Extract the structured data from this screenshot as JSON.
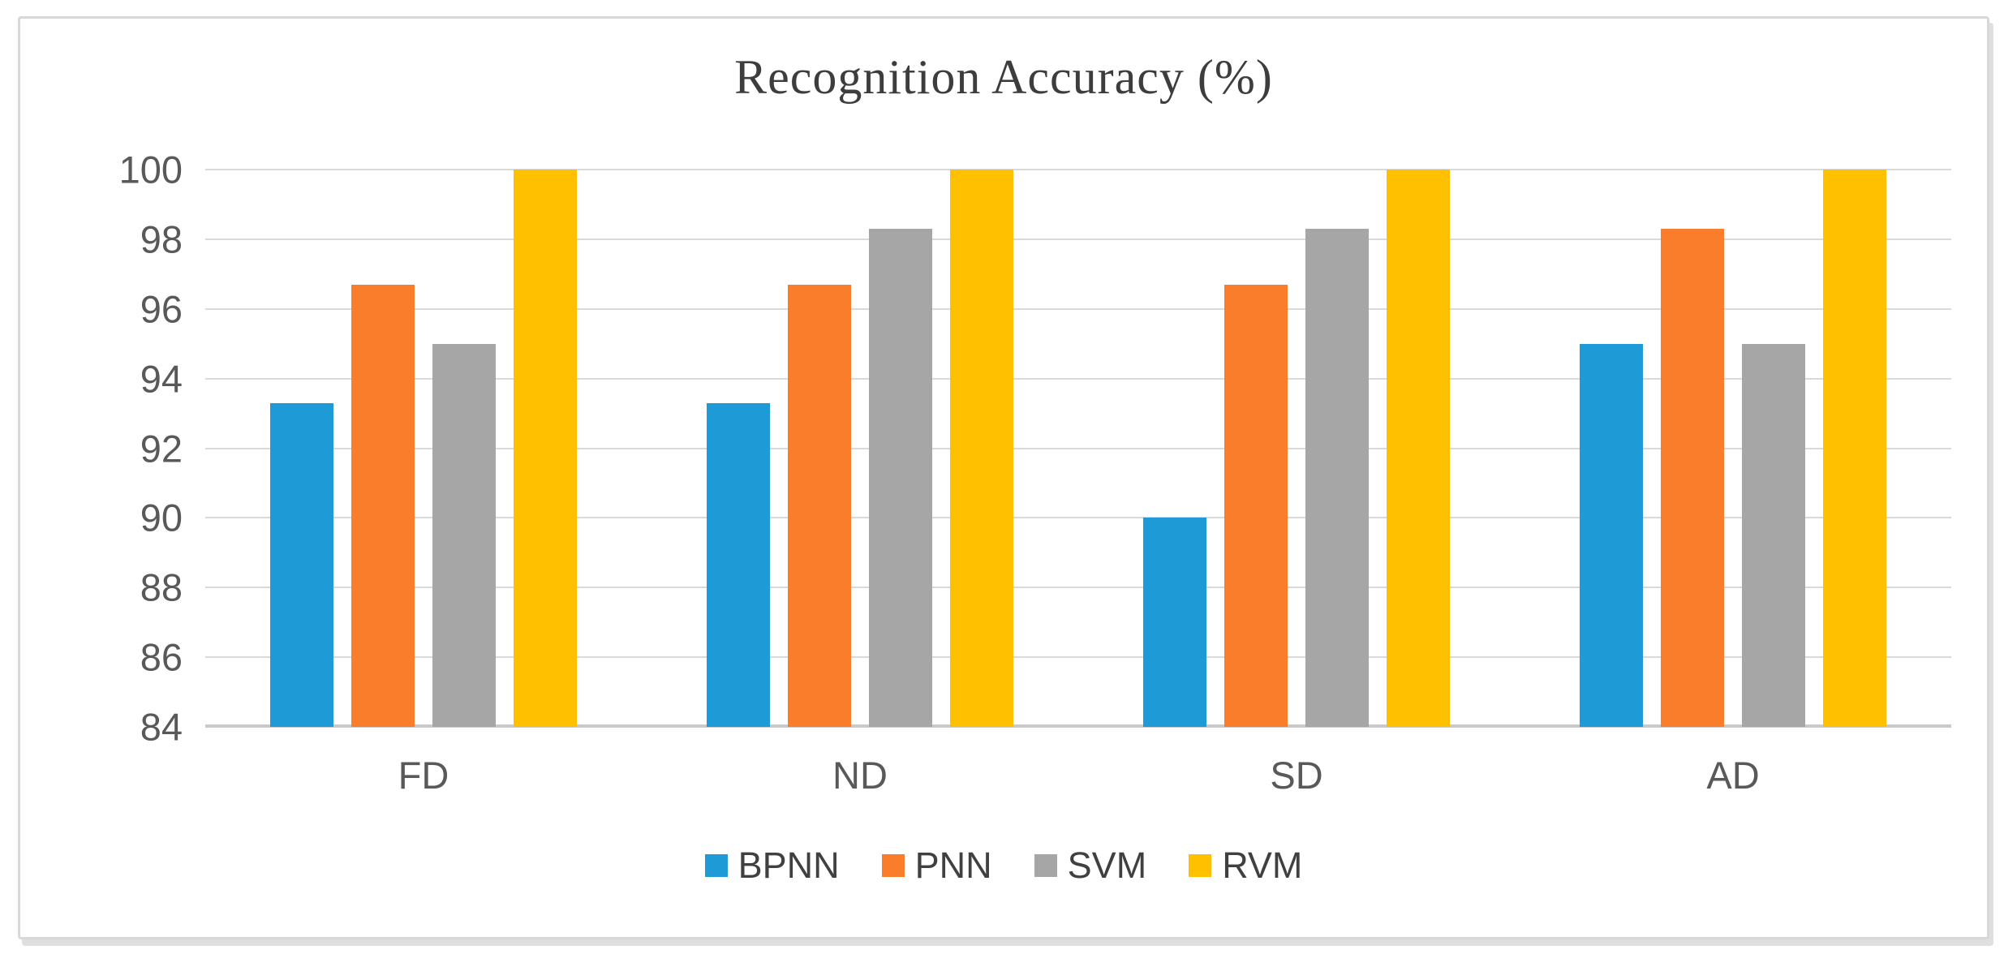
{
  "chart_data": {
    "type": "bar",
    "title": "Recognition Accuracy (%)",
    "categories": [
      "FD",
      "ND",
      "SD",
      "AD"
    ],
    "series": [
      {
        "name": "BPNN",
        "color": "#1E9AD6",
        "values": [
          93.3,
          93.3,
          90.0,
          95.0
        ]
      },
      {
        "name": "PNN",
        "color": "#F97D2B",
        "values": [
          96.7,
          96.7,
          96.7,
          98.3
        ]
      },
      {
        "name": "SVM",
        "color": "#A6A6A6",
        "values": [
          95.0,
          98.3,
          98.3,
          95.0
        ]
      },
      {
        "name": "RVM",
        "color": "#FFC000",
        "values": [
          100.0,
          100.0,
          100.0,
          100.0
        ]
      }
    ],
    "ylim": [
      84,
      100
    ],
    "yticks": [
      84,
      86,
      88,
      90,
      92,
      94,
      96,
      98,
      100
    ],
    "grid": true,
    "legend_position": "bottom"
  },
  "style": {
    "grid_color": "#d9d9d9",
    "axis_line_color": "#c9c9c9",
    "tick_text_color": "#595959",
    "title_color": "#3d3d3d",
    "frame_border_color": "#d8d8d8"
  }
}
